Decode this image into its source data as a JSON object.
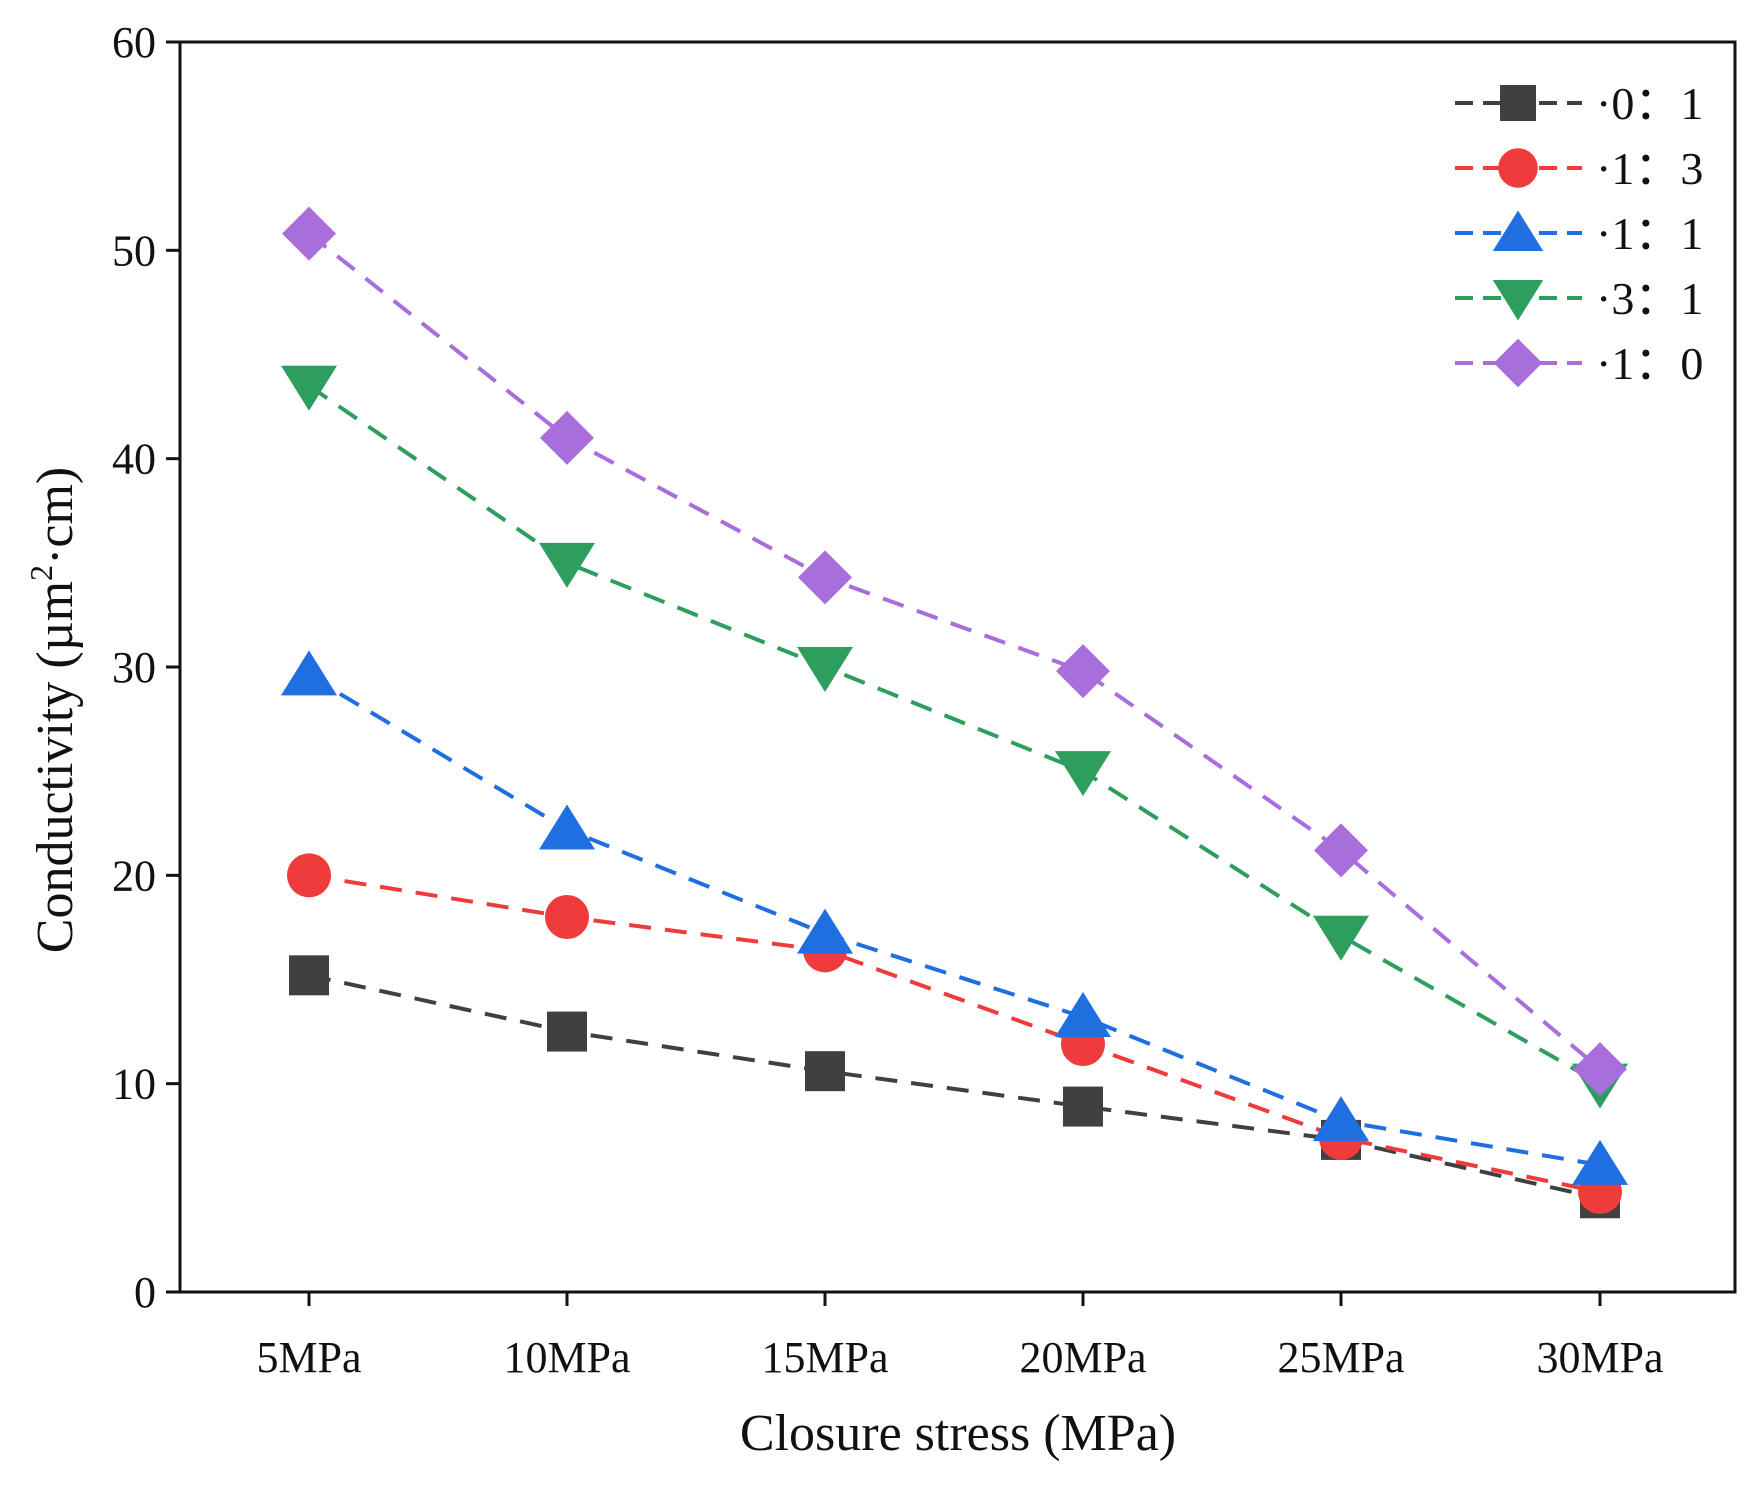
{
  "chart_data": {
    "type": "line",
    "title": "",
    "xlabel": "Closure stress (MPa)",
    "ylabel_prefix": "Conductivity (µm",
    "ylabel_sup": "2",
    "ylabel_suffix": "·cm)",
    "categories": [
      "5MPa",
      "10MPa",
      "15MPa",
      "20MPa",
      "25MPa",
      "30MPa"
    ],
    "ylim": [
      0,
      60
    ],
    "yticks": [
      0,
      10,
      20,
      30,
      40,
      50,
      60
    ],
    "grid": false,
    "legend_position": "top-right",
    "series": [
      {
        "name": "·0：1",
        "marker": "square",
        "color": "#404040",
        "values": [
          15.2,
          12.5,
          10.6,
          8.9,
          7.3,
          4.5
        ]
      },
      {
        "name": "·1：3",
        "marker": "circle",
        "color": "#ef3b3b",
        "values": [
          20.0,
          18.0,
          16.4,
          11.9,
          7.4,
          4.8
        ]
      },
      {
        "name": "·1：1",
        "marker": "triangle-up",
        "color": "#1f6fe0",
        "values": [
          29.6,
          22.2,
          17.2,
          13.2,
          8.2,
          6.1
        ]
      },
      {
        "name": "·3：1",
        "marker": "triangle-down",
        "color": "#2e9e5f",
        "values": [
          43.5,
          35.0,
          30.0,
          25.0,
          17.1,
          10.0
        ]
      },
      {
        "name": "·1：0",
        "marker": "diamond",
        "color": "#a86fdc",
        "values": [
          50.8,
          41.0,
          34.3,
          29.8,
          21.2,
          10.7
        ]
      }
    ]
  }
}
